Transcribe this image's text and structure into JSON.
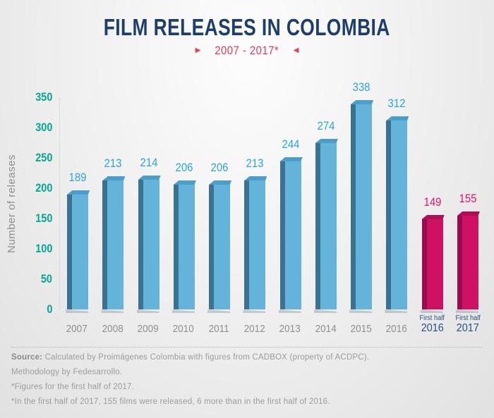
{
  "header": {
    "title": "FILM RELEASES IN COLOMBIA",
    "title_color": "#1d3e6d",
    "subtitle": "2007 - 2017*",
    "subtitle_color": "#ee3a56",
    "left_arrow": "▶",
    "right_arrow": "◀"
  },
  "chart_data": {
    "type": "bar",
    "title": "FILM RELEASES IN COLOMBIA",
    "subtitle": "2007 - 2017*",
    "xlabel": "",
    "ylabel": "Number of releases",
    "ylim": [
      0,
      350
    ],
    "yticks": [
      0,
      50,
      100,
      150,
      200,
      250,
      300,
      350
    ],
    "grid": false,
    "legend_position": "none",
    "categories": [
      "2007",
      "2008",
      "2009",
      "2010",
      "2011",
      "2012",
      "2013",
      "2014",
      "2015",
      "2016",
      "First half 2016",
      "First half 2017"
    ],
    "values": [
      189,
      213,
      214,
      206,
      206,
      213,
      244,
      274,
      338,
      312,
      149,
      155
    ],
    "columns": [
      {
        "label": "2007",
        "value": 189,
        "group": "annual"
      },
      {
        "label": "2008",
        "value": 213,
        "group": "annual"
      },
      {
        "label": "2009",
        "value": 214,
        "group": "annual"
      },
      {
        "label": "2010",
        "value": 206,
        "group": "annual"
      },
      {
        "label": "2011",
        "value": 206,
        "group": "annual"
      },
      {
        "label": "2012",
        "value": 213,
        "group": "annual"
      },
      {
        "label": "2013",
        "value": 244,
        "group": "annual"
      },
      {
        "label": "2014",
        "value": 274,
        "group": "annual"
      },
      {
        "label": "2015",
        "value": 338,
        "group": "annual"
      },
      {
        "label": "2016",
        "value": 312,
        "group": "annual"
      },
      {
        "label_top": "First half",
        "label": "2016",
        "value": 149,
        "group": "half"
      },
      {
        "label_top": "First half",
        "label": "2017",
        "value": 155,
        "group": "half"
      }
    ],
    "colors": {
      "annual": {
        "front": "#64b3da",
        "side": "#3b7191",
        "top": "#4a9ec9",
        "label": "#2aa6da"
      },
      "half": {
        "front": "#cf1164",
        "side": "#970c4c",
        "top": "#af0e56",
        "label": "#e8146b"
      },
      "y_tick": "#00a98c",
      "axis_line": "#cde0db",
      "x_label_annual": "#8f8f8f",
      "x_label_half": "#26527f"
    }
  },
  "footer": {
    "source_label": "Source:",
    "source_text": "Calculated by Proimágenes Colombia with figures from CADBOX (property of ACDPC).",
    "methodology": "Methodology by Fedesarrollo.",
    "note1": "*Figures for the first half of 2017.",
    "note2": "*In the first half of 2017, 155 films were released, 6 more than in the first half of 2016."
  }
}
